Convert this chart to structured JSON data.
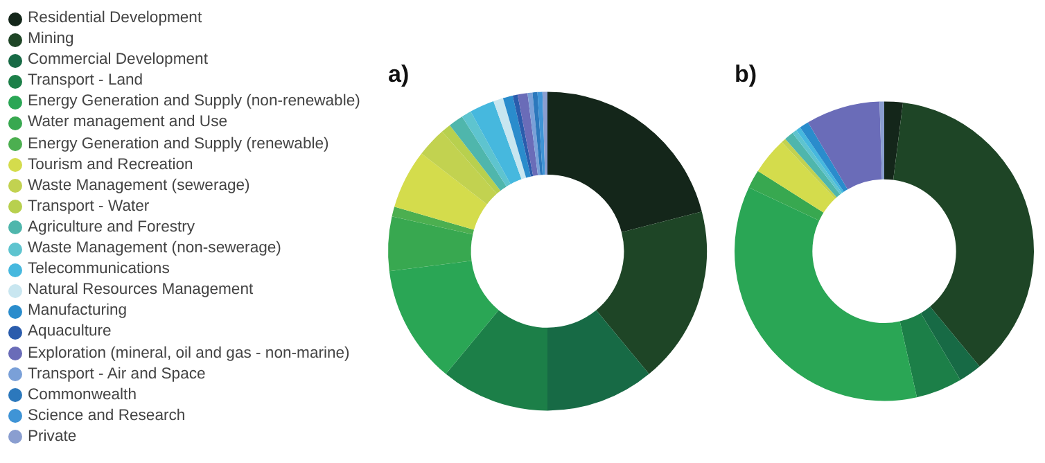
{
  "chart_data": [
    {
      "type": "donut",
      "title": "a)",
      "legend": "left",
      "categories": [
        "Residential Development",
        "Mining",
        "Commercial Development",
        "Transport - Land",
        "Energy Generation and Supply (non-renewable)",
        "Water management and Use",
        "Energy Generation and Supply (renewable)",
        "Tourism and Recreation",
        "Waste Management (sewerage)",
        "Transport - Water",
        "Agriculture and Forestry",
        "Waste Management (non-sewerage)",
        "Telecommunications",
        "Natural Resources Management",
        "Manufacturing",
        "Aquaculture",
        "Exploration (mineral, oil and gas - non-marine)",
        "Transport - Air and Space",
        "Commonwealth",
        "Science and Research",
        "Private"
      ],
      "values": [
        21,
        18,
        11,
        11,
        12,
        5.5,
        1,
        6,
        3,
        1,
        1.5,
        1,
        2.5,
        1,
        1,
        0.5,
        1,
        0.5,
        0.5,
        0.5,
        0.5
      ],
      "colors": [
        "#14261a",
        "#1e4526",
        "#176a45",
        "#1c7f48",
        "#2aa655",
        "#38a850",
        "#4caf50",
        "#d4dc4c",
        "#c2d250",
        "#b8d04e",
        "#4fb6ac",
        "#5ec4cf",
        "#46b8de",
        "#c8e6f0",
        "#2a8ccc",
        "#2a5cac",
        "#6a6cb8",
        "#7aa0d8",
        "#2c78bc",
        "#3f94d6",
        "#8a9ed0"
      ]
    },
    {
      "type": "donut",
      "title": "b)",
      "categories": [
        null,
        null,
        null,
        null,
        null,
        null,
        null,
        null,
        null,
        null,
        null,
        null,
        null,
        null,
        null,
        null,
        null,
        null,
        null,
        null,
        null
      ],
      "values": [
        2,
        37,
        2.5,
        5,
        35.5,
        2,
        0,
        4,
        0.5,
        0,
        1,
        0.5,
        0.5,
        0,
        1,
        0,
        8,
        0,
        0,
        0,
        0.5
      ],
      "colors": [
        "#14261a",
        "#1e4526",
        "#176a45",
        "#1c7f48",
        "#2aa655",
        "#38a850",
        "#4caf50",
        "#d4dc4c",
        "#c2d250",
        "#b8d04e",
        "#4fb6ac",
        "#5ec4cf",
        "#46b8de",
        "#c8e6f0",
        "#2a8ccc",
        "#2a5cac",
        "#6a6cb8",
        "#7aa0d8",
        "#2c78bc",
        "#3f94d6",
        "#8a9ed0"
      ]
    }
  ]
}
